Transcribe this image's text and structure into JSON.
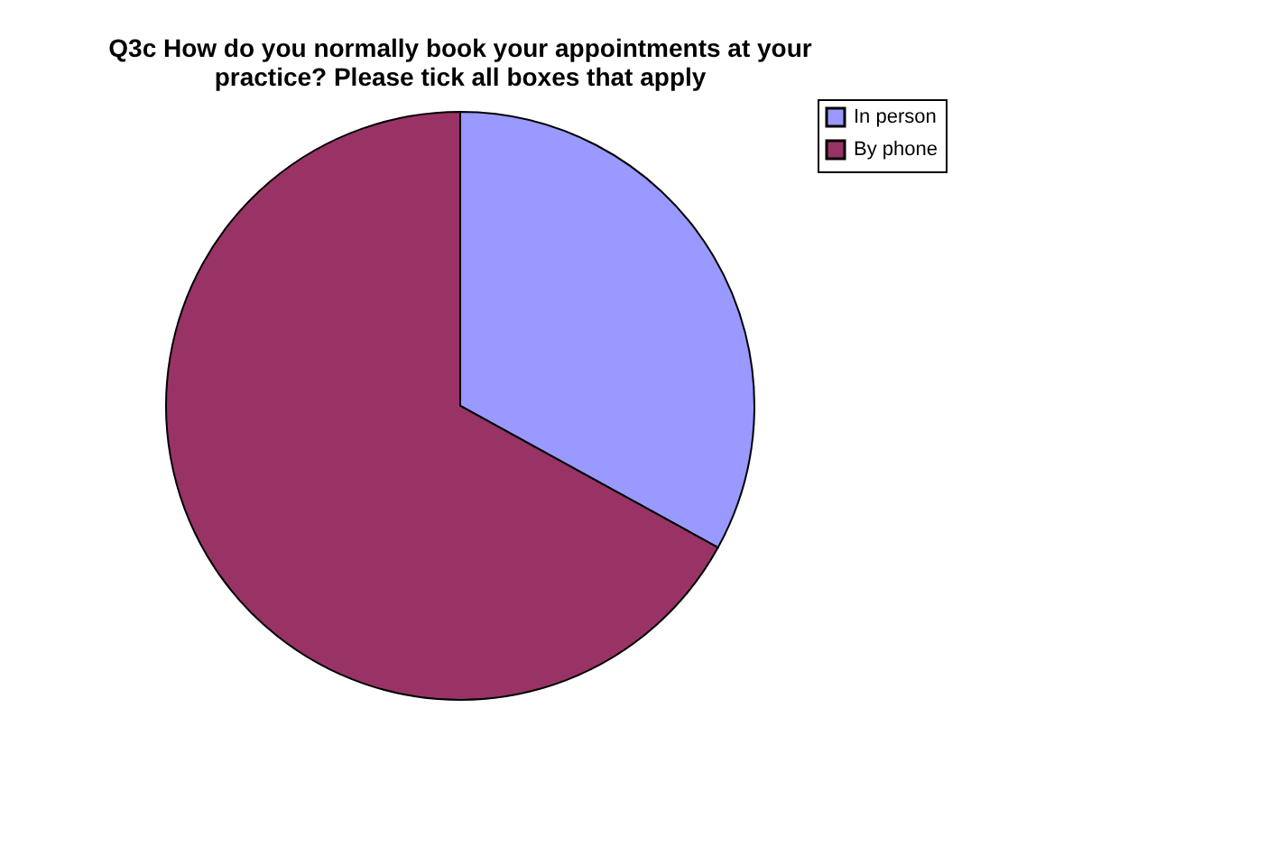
{
  "chart_data": {
    "type": "pie",
    "title": [
      "Q3c How do you normally book your appointments at your",
      "practice? Please tick all boxes that apply"
    ],
    "categories": [
      "In person",
      "By phone"
    ],
    "values": [
      33,
      67
    ],
    "colors": [
      "#9999ff",
      "#993366"
    ],
    "legend": "right"
  }
}
